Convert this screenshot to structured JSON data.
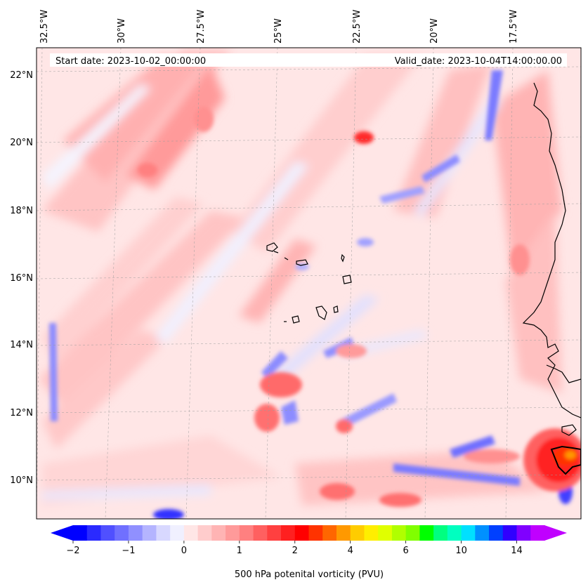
{
  "header": {
    "start_date": "Start date: 2023-10-02_00:00:00",
    "valid_date": "Valid_date: 2023-10-04T14:00:00.00"
  },
  "axes": {
    "lon_labels": [
      "32.5°W",
      "30°W",
      "27.5°W",
      "25°W",
      "22.5°W",
      "20°W",
      "17.5°W"
    ],
    "lat_labels": [
      "22°N",
      "20°N",
      "18°N",
      "16°N",
      "14°N",
      "12°N",
      "10°N"
    ]
  },
  "colorbar": {
    "label": "500 hPa potenital vorticity (PVU)",
    "tick_labels": [
      "−2",
      "−1",
      "0",
      "1",
      "2",
      "4",
      "6",
      "10",
      "14"
    ],
    "colors": [
      "#0000ff",
      "#2a2aff",
      "#5050ff",
      "#7070ff",
      "#9090ff",
      "#b4b4ff",
      "#d8d8ff",
      "#f0f0ff",
      "#ffe6e6",
      "#ffcccc",
      "#ffb4b4",
      "#ff9a9a",
      "#ff8080",
      "#ff6060",
      "#ff4040",
      "#ff2020",
      "#ff0000",
      "#ff3300",
      "#ff6600",
      "#ff9900",
      "#ffcc00",
      "#ffee00",
      "#e0ff00",
      "#b0ff00",
      "#80ff00",
      "#00ff00",
      "#00ff80",
      "#00ffc0",
      "#00e0ff",
      "#0090ff",
      "#0040ff",
      "#3000ff",
      "#8000ff",
      "#c000ff"
    ]
  }
}
